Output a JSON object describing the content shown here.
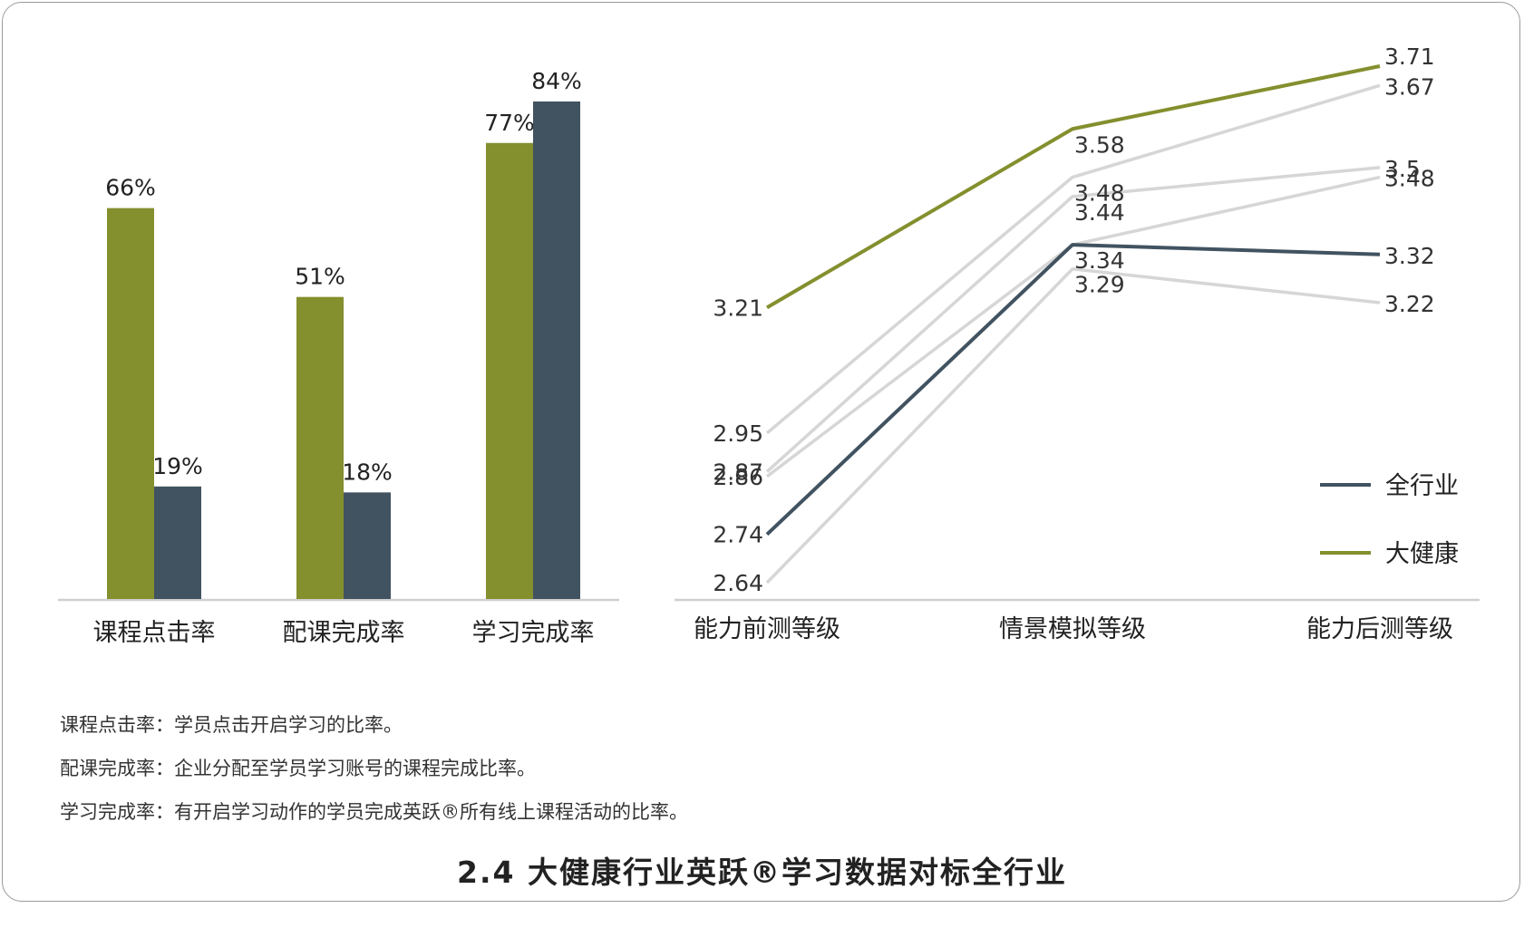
{
  "chart_data": [
    {
      "type": "bar",
      "categories": [
        "课程点击率",
        "配课完成率",
        "学习完成率"
      ],
      "series": [
        {
          "values": [
            66,
            51,
            77
          ],
          "labels": [
            "66%",
            "51%",
            "77%"
          ],
          "color": "#848f2e"
        },
        {
          "values": [
            19,
            18,
            84
          ],
          "labels": [
            "19%",
            "18%",
            "84%"
          ],
          "color": "#415361"
        }
      ],
      "ylim": [
        0,
        84
      ],
      "grid": false
    },
    {
      "type": "line",
      "categories": [
        "能力前测等级",
        "情景模拟等级",
        "能力后测等级"
      ],
      "series": [
        {
          "name": "全行业",
          "values": [
            2.74,
            3.34,
            3.32
          ],
          "labels": [
            "2.74",
            "3.34",
            "3.32"
          ],
          "color": "#415361"
        },
        {
          "name": "大健康",
          "values": [
            3.21,
            3.58,
            3.71
          ],
          "labels": [
            "3.21",
            "3.58",
            "3.71"
          ],
          "color": "#848f2e"
        },
        {
          "values": [
            2.95,
            3.48,
            3.67
          ],
          "labels": [
            "2.95",
            "3.48",
            "3.67"
          ],
          "color": "#d6d6d6"
        },
        {
          "values": [
            2.87,
            3.44,
            3.5
          ],
          "labels": [
            "2.87",
            "3.44",
            "3.5"
          ],
          "color": "#d6d6d6"
        },
        {
          "values": [
            2.86,
            3.34,
            3.48
          ],
          "labels": [
            "2.86",
            "",
            "3.48"
          ],
          "color": "#d6d6d6"
        },
        {
          "values": [
            2.64,
            3.29,
            3.22
          ],
          "labels": [
            "2.64",
            "3.29",
            "3.22"
          ],
          "color": "#d6d6d6"
        }
      ],
      "legend_position": "right",
      "grid": false
    }
  ],
  "notes": [
    "课程点击率：学员点击开启学习的比率。",
    "配课完成率：企业分配至学员学习账号的课程完成比率。",
    "学习完成率：有开启学习动作的学员完成英跃®所有线上课程活动的比率。"
  ],
  "caption": "2.4 大健康行业英跃®学习数据对标全行业"
}
